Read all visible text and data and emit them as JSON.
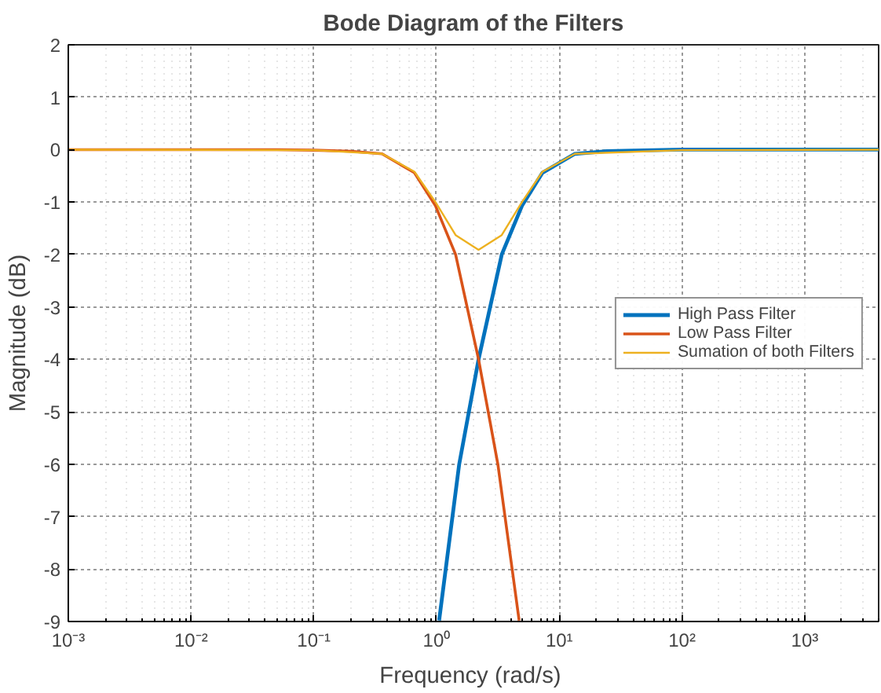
{
  "chart_data": {
    "type": "line",
    "title": "Bode Diagram of the Filters",
    "xlabel": "Frequency  (rad/s)",
    "ylabel": "Magnitude (dB)",
    "log": "x",
    "grid": true,
    "legend": "right",
    "line_style": "solid",
    "marker": "none",
    "xlim": [
      0.001,
      4000
    ],
    "ylim": [
      -9,
      2
    ],
    "xticks": [
      {
        "value": 0.001,
        "label": "10⁻³"
      },
      {
        "value": 0.01,
        "label": "10⁻²"
      },
      {
        "value": 0.1,
        "label": "10⁻¹"
      },
      {
        "value": 1,
        "label": "10⁰"
      },
      {
        "value": 10,
        "label": "10¹"
      },
      {
        "value": 100,
        "label": "10²"
      },
      {
        "value": 1000,
        "label": "10³"
      }
    ],
    "yticks": [
      -9,
      -8,
      -7,
      -6,
      -5,
      -4,
      -3,
      -2,
      -1,
      0,
      1,
      2
    ],
    "series": [
      {
        "name": "High Pass Filter",
        "color": "#0072bd",
        "x": [
          1.05,
          1.53,
          2.2,
          3.4,
          4.97,
          7.3,
          13.4,
          24.3,
          100,
          1000,
          4000
        ],
        "values": [
          -8.98,
          -6.0,
          -4.0,
          -2.0,
          -1.07,
          -0.44,
          -0.08,
          -0.03,
          0,
          0,
          0
        ]
      },
      {
        "name": "Low Pass Filter",
        "color": "#d95319",
        "x": [
          0.001,
          0.01,
          0.05,
          0.1,
          0.2,
          0.36,
          0.66,
          0.98,
          1.43,
          2.2,
          3.16,
          4.71
        ],
        "values": [
          0,
          0,
          0,
          -0.01,
          -0.03,
          -0.08,
          -0.44,
          -1.07,
          -2.0,
          -4.0,
          -6.0,
          -8.98
        ]
      },
      {
        "name": "Sumation of both Filters",
        "color": "#edb120",
        "x": [
          0.001,
          0.1,
          0.36,
          0.66,
          0.98,
          1.43,
          2.2,
          3.4,
          4.97,
          7.3,
          13.4,
          100,
          4000
        ],
        "values": [
          0,
          -0.01,
          -0.08,
          -0.42,
          -1.0,
          -1.63,
          -1.91,
          -1.63,
          -1.0,
          -0.42,
          -0.08,
          -0.01,
          0
        ]
      }
    ]
  }
}
